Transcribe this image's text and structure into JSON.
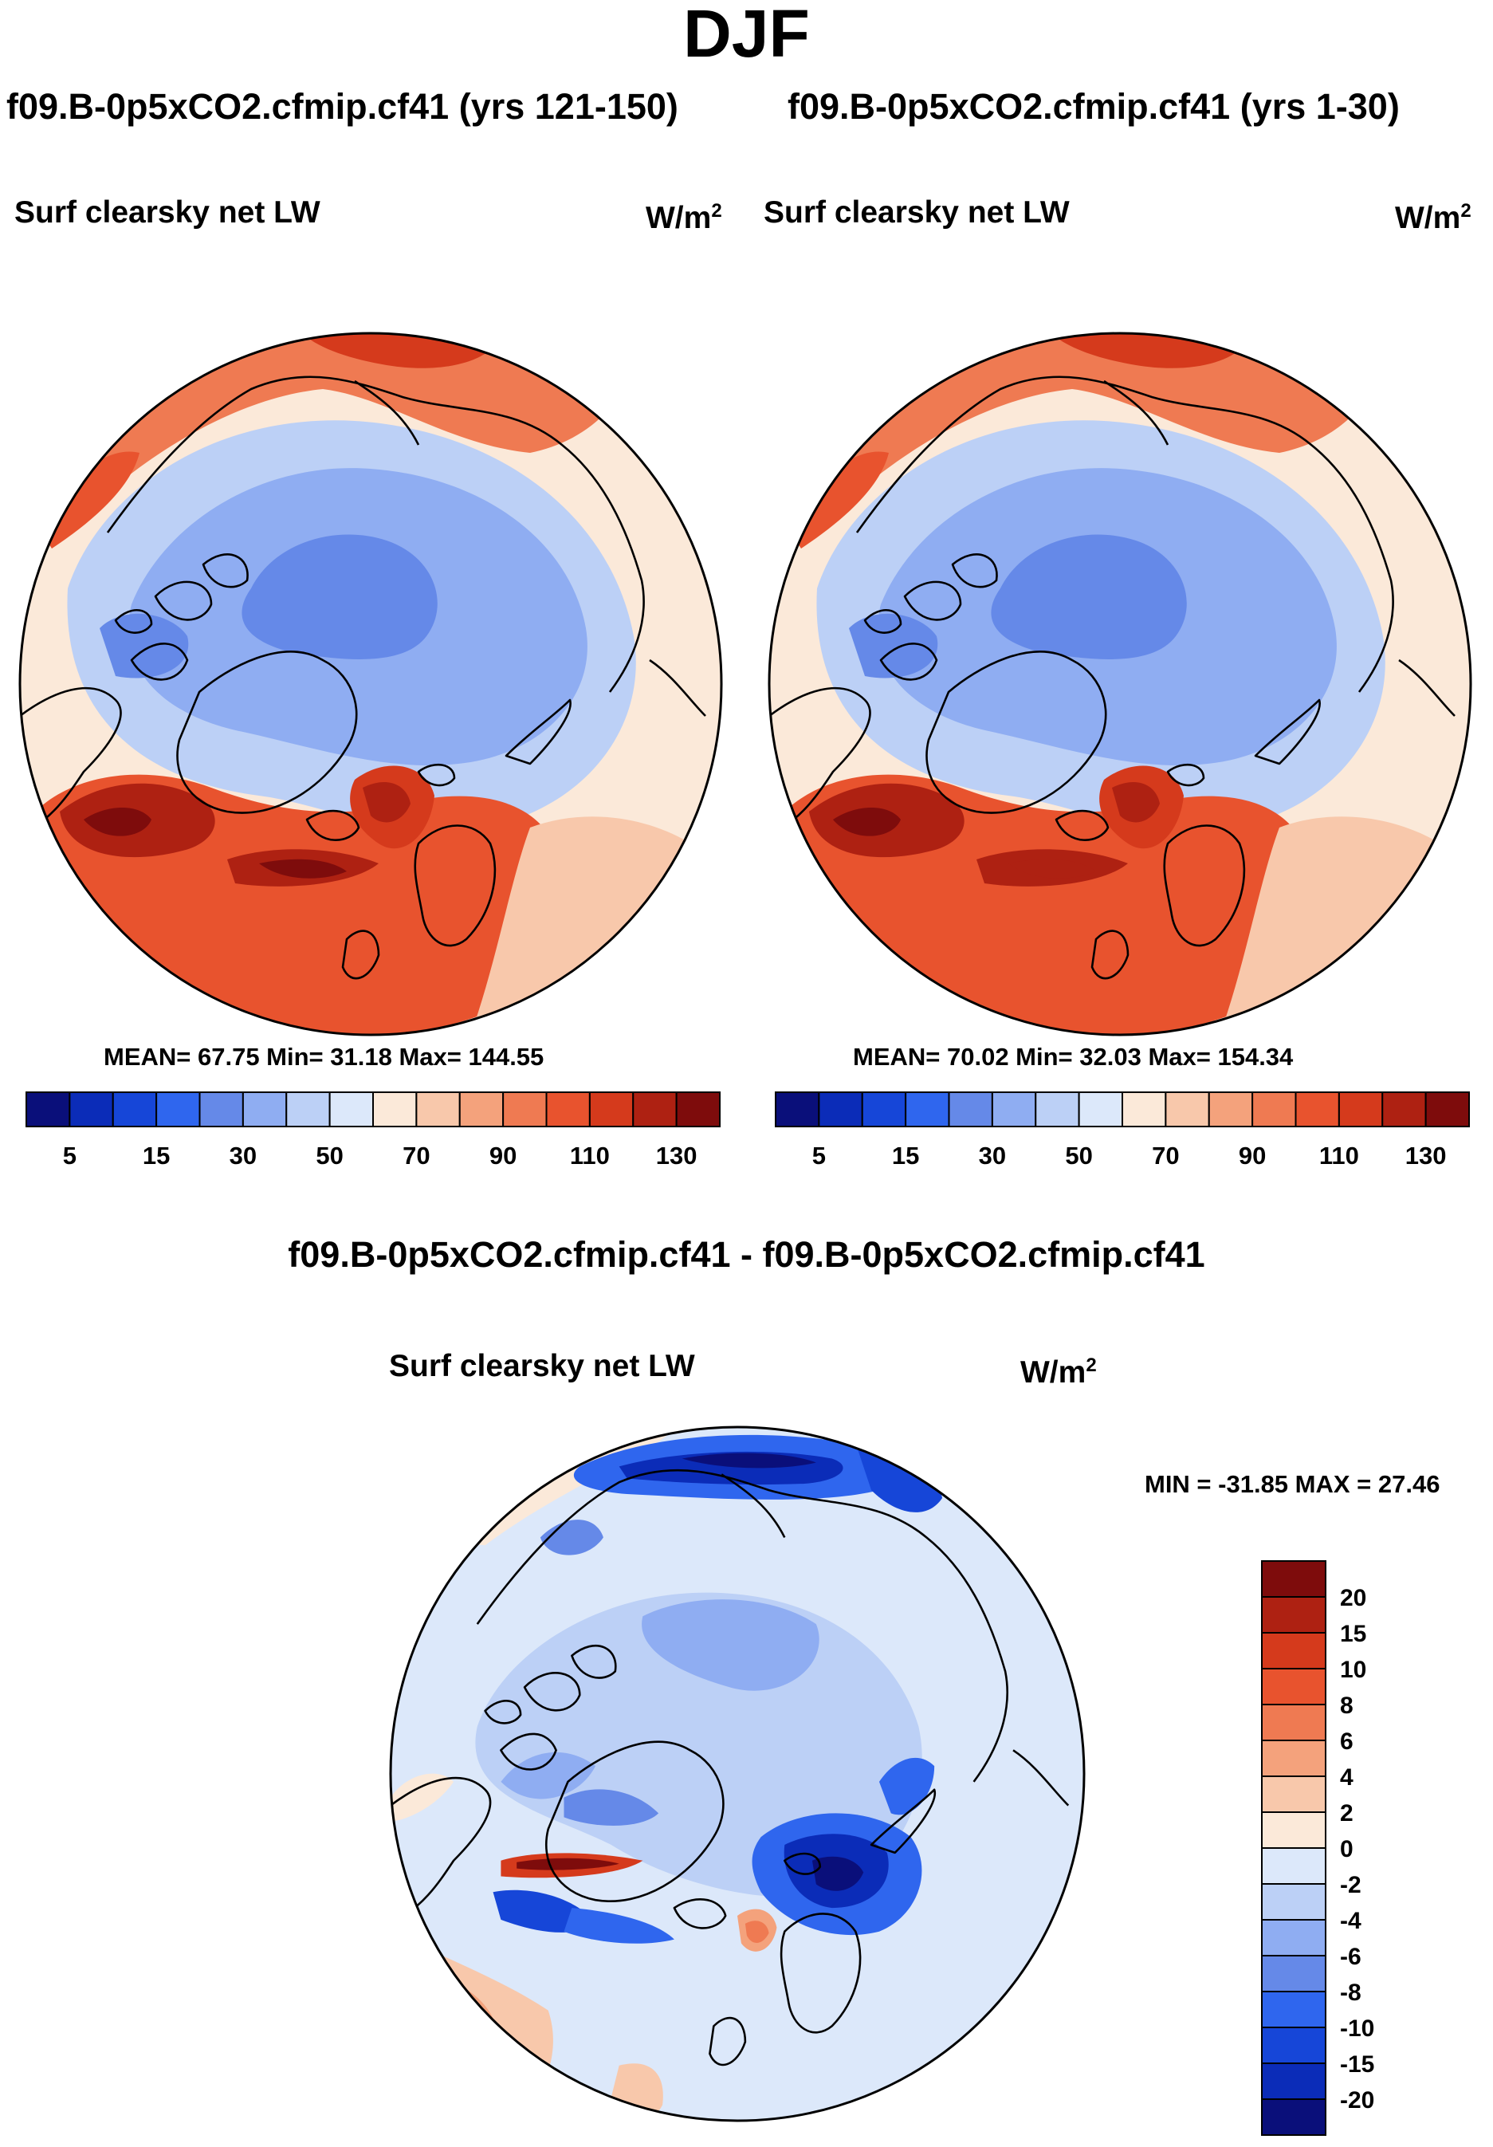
{
  "title": "DJF",
  "palettes": {
    "abs": [
      "#0a0f7a",
      "#0b2cb8",
      "#1646d8",
      "#2f66ee",
      "#6589e8",
      "#8fadf2",
      "#bcd0f6",
      "#dce8fa",
      "#fbe9d9",
      "#f8c8ab",
      "#f4a27c",
      "#ef7a52",
      "#e8532e",
      "#d53a1c",
      "#ae2112",
      "#7e0c0c"
    ],
    "diff": [
      "#0a0f7a",
      "#0b2cb8",
      "#1646d8",
      "#2f66ee",
      "#6589e8",
      "#8fadf2",
      "#bcd0f6",
      "#dce8fa",
      "#fbe9d9",
      "#f8c8ab",
      "#f4a27c",
      "#ef7a52",
      "#e8532e",
      "#d53a1c",
      "#ae2112",
      "#7e0c0c"
    ],
    "ocean_warm": "#e84c27",
    "line": "#000000"
  },
  "panel_left": {
    "run_title": "f09.B-0p5xCO2.cfmip.cf41 (yrs 121-150)",
    "variable": "Surf clearsky net LW",
    "units_base": "W/m",
    "units_exp": "2",
    "stats": "MEAN=  67.75  Min=  31.18  Max= 144.55"
  },
  "panel_right": {
    "run_title": "f09.B-0p5xCO2.cfmip.cf41 (yrs 1-30)",
    "variable": "Surf clearsky net LW",
    "units_base": "W/m",
    "units_exp": "2",
    "stats": "MEAN=  70.02  Min=  32.03  Max= 154.34"
  },
  "panel_diff": {
    "run_title": "f09.B-0p5xCO2.cfmip.cf41 - f09.B-0p5xCO2.cfmip.cf41",
    "variable": "Surf clearsky net LW",
    "units_base": "W/m",
    "units_exp": "2",
    "stats": "MIN = -31.85 MAX =  27.46"
  },
  "chart_data": [
    {
      "type": "heatmap",
      "projection": "north polar stereographic",
      "title": "f09.B-0p5xCO2.cfmip.cf41 (yrs 121-150)",
      "field": "Surf clearsky net LW",
      "units": "W/m2",
      "season": "DJF",
      "mean": 67.75,
      "min": 31.18,
      "max": 144.55,
      "colorbar_levels": [
        5,
        10,
        15,
        20,
        30,
        40,
        50,
        60,
        70,
        80,
        90,
        100,
        110,
        120,
        130
      ],
      "colorbar_tick_labels": [
        "5",
        "15",
        "30",
        "50",
        "70",
        "90",
        "110",
        "130"
      ]
    },
    {
      "type": "heatmap",
      "projection": "north polar stereographic",
      "title": "f09.B-0p5xCO2.cfmip.cf41 (yrs 1-30)",
      "field": "Surf clearsky net LW",
      "units": "W/m2",
      "season": "DJF",
      "mean": 70.02,
      "min": 32.03,
      "max": 154.34,
      "colorbar_levels": [
        5,
        10,
        15,
        20,
        30,
        40,
        50,
        60,
        70,
        80,
        90,
        100,
        110,
        120,
        130
      ],
      "colorbar_tick_labels": [
        "5",
        "15",
        "30",
        "50",
        "70",
        "90",
        "110",
        "130"
      ]
    },
    {
      "type": "heatmap",
      "projection": "north polar stereographic",
      "title": "f09.B-0p5xCO2.cfmip.cf41 - f09.B-0p5xCO2.cfmip.cf41",
      "field": "Surf clearsky net LW",
      "units": "W/m2",
      "season": "DJF",
      "min": -31.85,
      "max": 27.46,
      "colorbar_levels": [
        -20,
        -15,
        -10,
        -8,
        -6,
        -4,
        -2,
        0,
        2,
        4,
        6,
        8,
        10,
        15,
        20
      ],
      "colorbar_tick_labels": [
        "20",
        "15",
        "10",
        "8",
        "6",
        "4",
        "2",
        "0",
        "-2",
        "-4",
        "-6",
        "-8",
        "-10",
        "-15",
        "-20"
      ]
    }
  ]
}
